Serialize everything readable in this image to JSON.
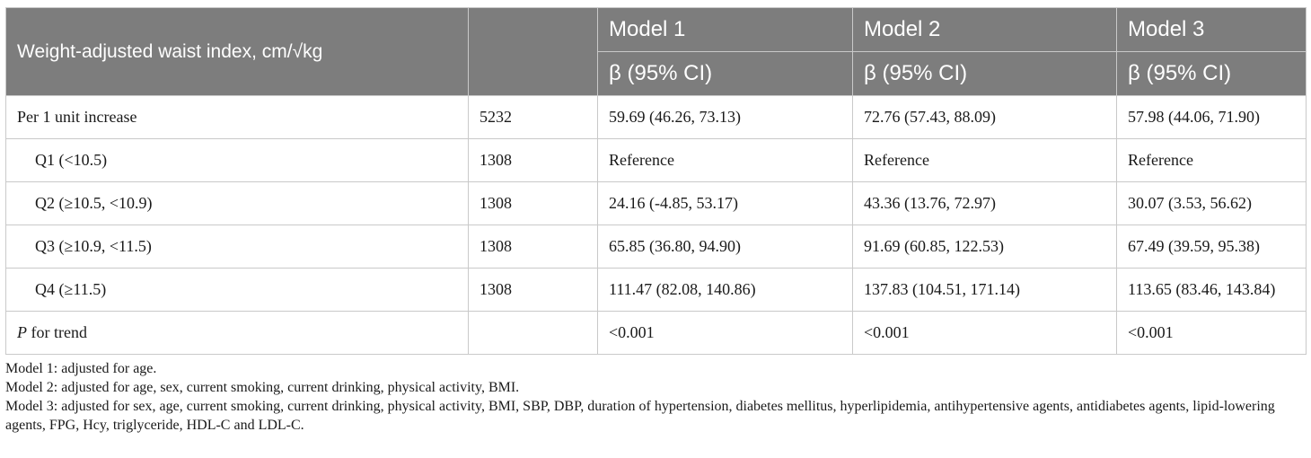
{
  "header": {
    "row_label": "Weight-adjusted waist index, cm/√kg",
    "models": [
      "Model 1",
      "Model 2",
      "Model 3"
    ],
    "stat_label": "β (95% CI)"
  },
  "rows": [
    {
      "label": "Per 1 unit increase",
      "n": "5232",
      "m1": "59.69 (46.26, 73.13)",
      "m2": "72.76 (57.43, 88.09)",
      "m3": "57.98 (44.06, 71.90)"
    },
    {
      "label": "Q1 (<10.5)",
      "n": "1308",
      "m1": "Reference",
      "m2": "Reference",
      "m3": "Reference"
    },
    {
      "label": "Q2 (≥10.5, <10.9)",
      "n": "1308",
      "m1": "24.16 (-4.85, 53.17)",
      "m2": "43.36 (13.76, 72.97)",
      "m3": "30.07 (3.53, 56.62)"
    },
    {
      "label": "Q3 (≥10.9, <11.5)",
      "n": "1308",
      "m1": "65.85 (36.80, 94.90)",
      "m2": "91.69 (60.85, 122.53)",
      "m3": "67.49 (39.59, 95.38)"
    },
    {
      "label": "Q4 (≥11.5)",
      "n": "1308",
      "m1": "111.47 (82.08, 140.86)",
      "m2": "137.83 (104.51, 171.14)",
      "m3": "113.65 (83.46, 143.84)"
    },
    {
      "label_italic": "P",
      "label_rest": " for trend",
      "n": "",
      "m1": "<0.001",
      "m2": "<0.001",
      "m3": "<0.001"
    }
  ],
  "notes": [
    "Model 1: adjusted for age.",
    "Model 2: adjusted for age, sex, current smoking, current drinking, physical activity, BMI.",
    "Model 3: adjusted for sex, age, current smoking, current drinking, physical activity, BMI, SBP, DBP, duration of hypertension, diabetes mellitus, hyperlipidemia, antihypertensive agents, antidiabetes agents, lipid-lowering agents, FPG, Hcy, triglyceride, HDL-C and LDL-C."
  ]
}
